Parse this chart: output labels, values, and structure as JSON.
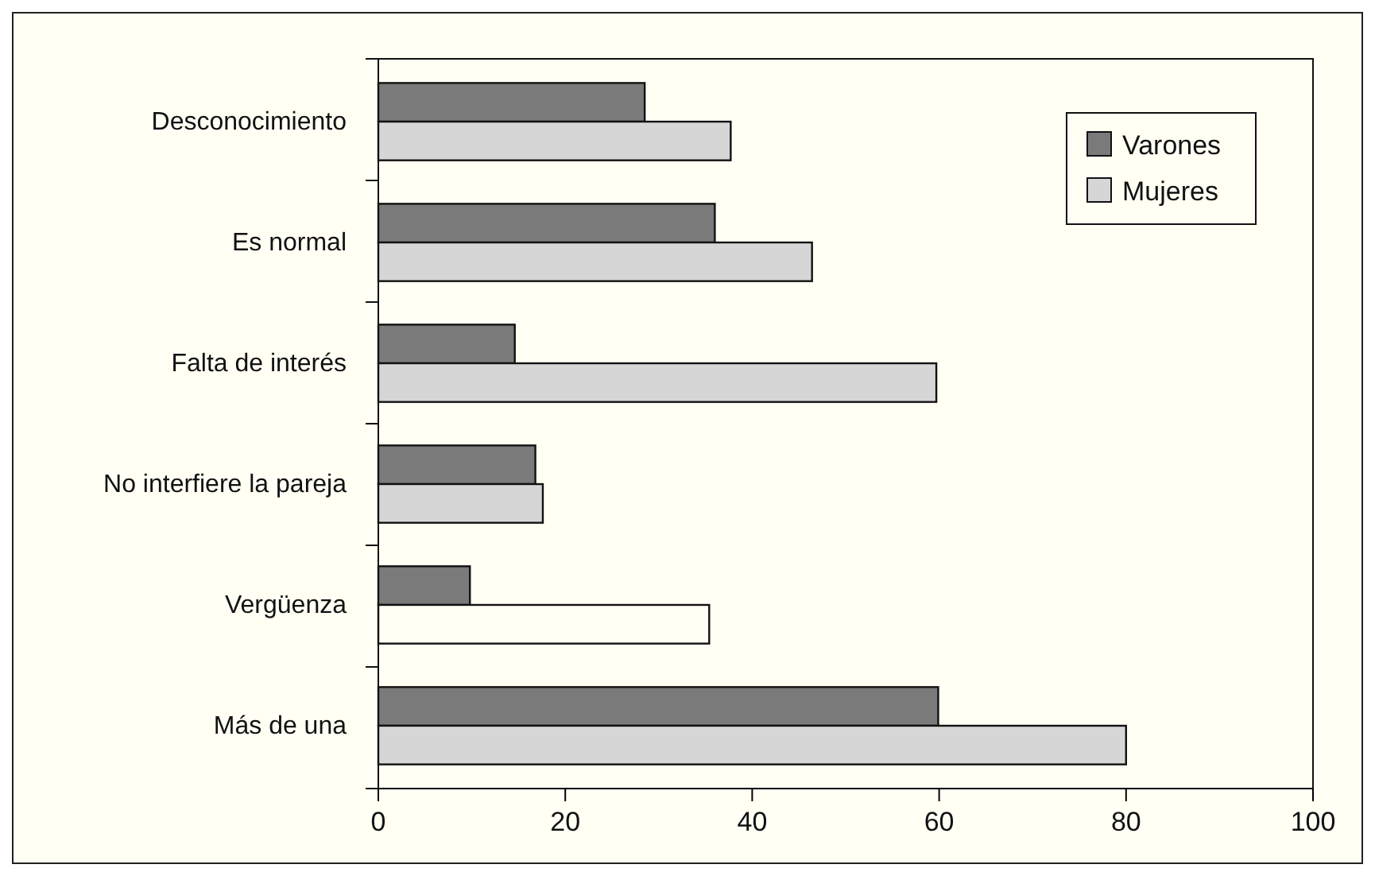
{
  "chart_data": {
    "type": "bar",
    "orientation": "horizontal",
    "categories": [
      "Desconocimiento",
      "Es normal",
      "Falta de interés",
      "No interfiere la pareja",
      "Vergüenza",
      "Más de una"
    ],
    "series": [
      {
        "name": "Varones",
        "color": "#7a7a7a",
        "values": [
          28.5,
          36,
          14.6,
          16.8,
          9.8,
          59.9
        ]
      },
      {
        "name": "Mujeres",
        "color": "#d6d6d6",
        "colors": [
          "#d6d6d6",
          "#d6d6d6",
          "#d6d6d6",
          "#d6d6d6",
          "#fffff4",
          "#d6d6d6"
        ],
        "values": [
          37.7,
          46.4,
          59.7,
          17.6,
          35.4,
          80
        ]
      }
    ],
    "xlim": [
      0,
      100
    ],
    "xticks": [
      0,
      20,
      40,
      60,
      80,
      100
    ],
    "grid": false,
    "legend": "top right"
  }
}
